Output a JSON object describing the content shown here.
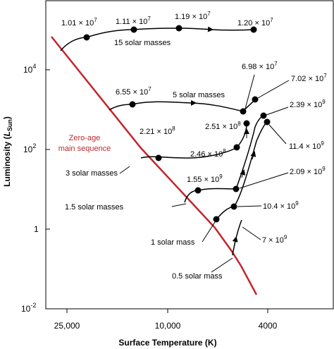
{
  "chart_data": {
    "type": "line",
    "title": "",
    "xlabel": "Surface Temperature (K)",
    "ylabel_main": "Luminosity (",
    "ylabel_var": "L",
    "ylabel_sub": "Sun",
    "ylabel_close": ")",
    "x_scale": "log, decreasing to the right",
    "y_scale": "log",
    "x_ticks": [
      "25,000",
      "10,000",
      "4000"
    ],
    "y_ticks": [
      {
        "base": "10",
        "exp": "-2"
      },
      {
        "base": "1",
        "exp": ""
      },
      {
        "base": "10",
        "exp": "2"
      },
      {
        "base": "10",
        "exp": "4"
      }
    ],
    "zams": {
      "label_line1": "Zero-age",
      "label_line2": "main sequence",
      "color": "#c0272d"
    },
    "tracks": [
      {
        "mass_label": "15 solar masses",
        "ages": [
          "1.01 × 10",
          "1.11 × 10",
          "1.19 × 10",
          "1.20 × 10"
        ],
        "age_exps": [
          "7",
          "7",
          "7",
          "7"
        ]
      },
      {
        "mass_label": "5 solar masses",
        "ages": [
          "6.55 × 10",
          "6.98 × 10",
          "7.02 × 10"
        ],
        "age_exps": [
          "7",
          "7",
          "7"
        ]
      },
      {
        "mass_label": "3 solar masses",
        "ages": [
          "2.21 × 10",
          "2.46 × 10",
          "2.51 × 10"
        ],
        "age_exps": [
          "8",
          "8",
          "8"
        ]
      },
      {
        "mass_label": "1.5 solar masses",
        "ages": [
          "1.55 × 10",
          "2.09 × 10",
          "2.39 × 10"
        ],
        "age_exps": [
          "9",
          "9",
          "9"
        ]
      },
      {
        "mass_label": "1 solar mass",
        "ages": [
          "10.4 × 10",
          "11.4 × 10"
        ],
        "age_exps": [
          "9",
          "9"
        ]
      },
      {
        "mass_label": "0.5 solar mass",
        "ages": [
          "7 × 10"
        ],
        "age_exps": [
          "9"
        ]
      }
    ],
    "colors": {
      "zams": "#c0272d",
      "tracks": "#000000"
    },
    "grid": false,
    "legend": "none"
  }
}
